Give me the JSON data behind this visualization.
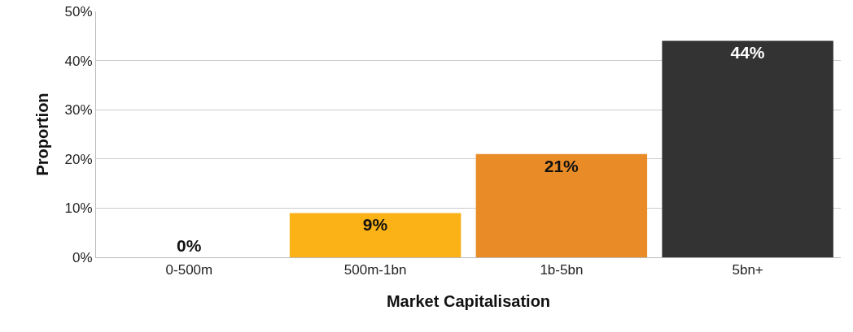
{
  "chart_data": {
    "type": "bar",
    "xlabel": "Market Capitalisation",
    "ylabel": "Proportion",
    "categories": [
      "0-500m",
      "500m-1bn",
      "1b-5bn",
      "5bn+"
    ],
    "values": [
      0,
      9,
      21,
      44
    ],
    "value_labels": [
      "0%",
      "9%",
      "21%",
      "44%"
    ],
    "colors": [
      "#fbb216",
      "#fbb216",
      "#e98c28",
      "#333333"
    ],
    "ylim": [
      0,
      50
    ],
    "yticks": [
      {
        "value": 0,
        "label": "0%"
      },
      {
        "value": 10,
        "label": "10%"
      },
      {
        "value": 20,
        "label": "20%"
      },
      {
        "value": 30,
        "label": "30%"
      },
      {
        "value": 40,
        "label": "40%"
      },
      {
        "value": 50,
        "label": "50%"
      }
    ],
    "grid": "y"
  }
}
